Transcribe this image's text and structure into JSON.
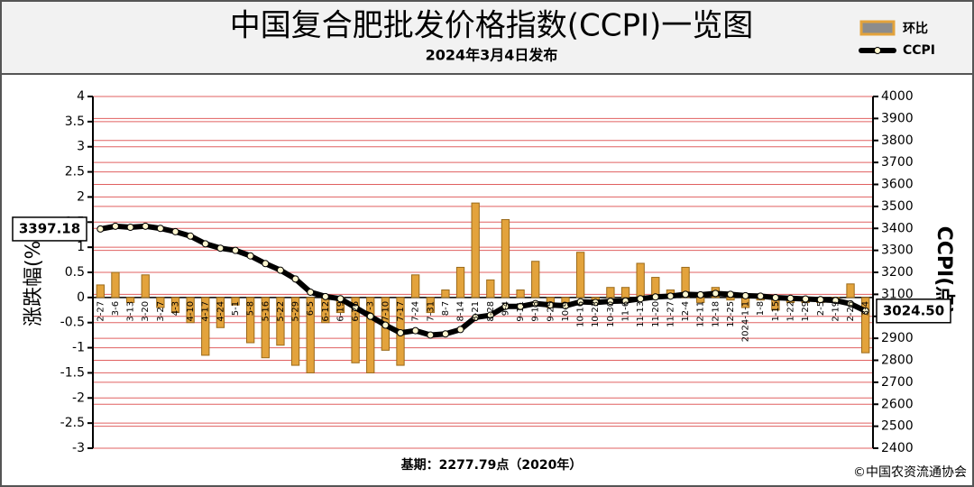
{
  "chart_data": {
    "type": "bar_line",
    "title": "中国复合肥批发价格指数(CCPI)一览图",
    "subtitle": "2024年3月4日发布",
    "ylabel": "涨跌幅(%)",
    "y2label": "CCPI(点)",
    "footer": "基期：2277.79点（2020年）",
    "source": "©中国农资流通协会",
    "categories": [
      "2-27",
      "3-6",
      "3-13",
      "3-20",
      "3-27",
      "4-3",
      "4-10",
      "4-17",
      "4-24",
      "5-1",
      "5-8",
      "5-16",
      "5-22",
      "5-29",
      "6-5",
      "6-12",
      "6-19",
      "6-26",
      "7-3",
      "7-10",
      "7-17",
      "7-24",
      "7-31",
      "8-7",
      "8-14",
      "8-21",
      "8-28",
      "9-4",
      "9-11",
      "9-18",
      "9-25",
      "10-9",
      "10-16",
      "10-23",
      "10-30",
      "11-6",
      "11-13",
      "11-20",
      "11-27",
      "12-4",
      "12-11",
      "12-18",
      "12-25",
      "2024-1-1",
      "1-8",
      "1-15",
      "1-22",
      "1-29",
      "2-5",
      "2-19",
      "2-26",
      "3-4"
    ],
    "series": [
      {
        "name": "环比",
        "type": "bar",
        "color": "#e3a33c",
        "values": [
          0.25,
          0.5,
          -0.1,
          0.45,
          -0.2,
          -0.3,
          -0.5,
          -1.15,
          -0.6,
          -0.15,
          -0.9,
          -1.2,
          -0.95,
          -1.35,
          -1.5,
          -0.5,
          -0.3,
          -1.3,
          -1.5,
          -1.05,
          -1.35,
          0.45,
          -0.3,
          0.15,
          0.6,
          1.88,
          0.35,
          1.55,
          0.15,
          0.72,
          -0.2,
          -0.15,
          0.9,
          -0.1,
          0.2,
          0.2,
          0.68,
          0.4,
          0.15,
          0.6,
          -0.1,
          0.2,
          -0.05,
          -0.2,
          -0.05,
          -0.25,
          -0.1,
          -0.1,
          -0.1,
          -0.1,
          0.27,
          -1.1
        ]
      },
      {
        "name": "CCPI",
        "type": "line",
        "axis": "y2",
        "color": "#000000",
        "values": [
          3397.18,
          3410,
          3405,
          3410,
          3400,
          3385,
          3365,
          3330,
          3310,
          3300,
          3275,
          3240,
          3210,
          3170,
          3110,
          3090,
          3080,
          3040,
          3000,
          2960,
          2925,
          2935,
          2915,
          2920,
          2940,
          2995,
          3005,
          3045,
          3045,
          3058,
          3052,
          3048,
          3066,
          3063,
          3068,
          3070,
          3080,
          3088,
          3092,
          3100,
          3098,
          3104,
          3100,
          3094,
          3092,
          3085,
          3082,
          3079,
          3076,
          3072,
          3057,
          3024.5
        ],
        "value_labels": [
          "3397.18",
          null,
          null,
          null,
          null,
          null,
          null,
          null,
          null,
          null,
          null,
          null,
          null,
          null,
          null,
          null,
          null,
          null,
          null,
          null,
          null,
          null,
          null,
          null,
          null,
          null,
          null,
          null,
          null,
          null,
          null,
          null,
          null,
          null,
          null,
          null,
          null,
          null,
          null,
          null,
          null,
          null,
          null,
          null,
          null,
          null,
          null,
          null,
          null,
          null,
          null,
          "3024.50"
        ]
      }
    ],
    "ylim": [
      -3,
      4
    ],
    "yticks": [
      -3,
      -2.5,
      -2,
      -1.5,
      -1,
      -0.5,
      0,
      0.5,
      1,
      1.5,
      2,
      2.5,
      3,
      3.5,
      4
    ],
    "y2lim": [
      2400,
      4000
    ],
    "y2ticks": [
      2400,
      2500,
      2600,
      2700,
      2800,
      2900,
      3000,
      3100,
      3200,
      3300,
      3400,
      3500,
      3600,
      3700,
      3800,
      3900,
      4000
    ],
    "grid": true,
    "grid_color": "#e06060",
    "legend": "top-right"
  }
}
